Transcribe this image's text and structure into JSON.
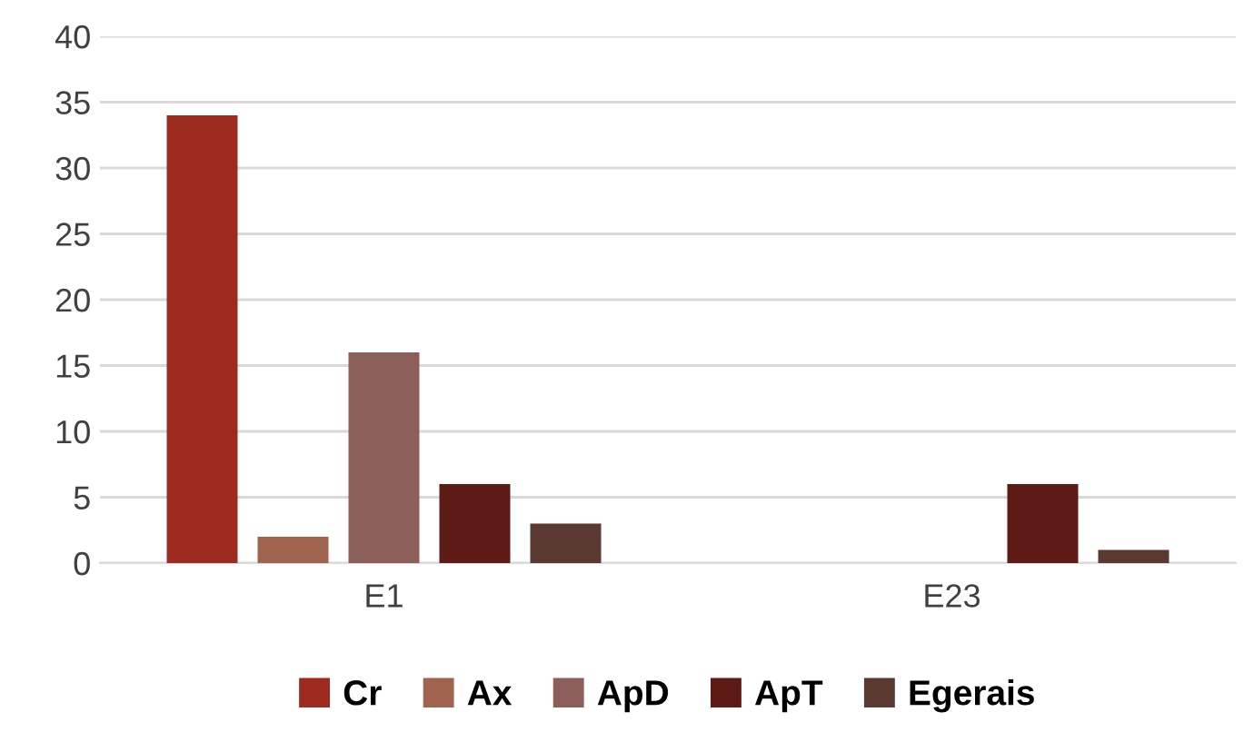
{
  "chart_data": {
    "type": "bar",
    "categories": [
      "E1",
      "E23"
    ],
    "series": [
      {
        "name": "Cr",
        "color": "#9e2b20",
        "values": [
          34,
          0
        ]
      },
      {
        "name": "Ax",
        "color": "#a0644e",
        "values": [
          2,
          0
        ]
      },
      {
        "name": "ApD",
        "color": "#8c5f5a",
        "values": [
          16,
          0
        ]
      },
      {
        "name": "ApT",
        "color": "#5e1a14",
        "values": [
          6,
          6
        ]
      },
      {
        "name": "Egerais",
        "color": "#5a3a30",
        "values": [
          3,
          1
        ]
      }
    ],
    "ylim": [
      0,
      40
    ],
    "yticks": [
      0,
      5,
      10,
      15,
      20,
      25,
      30,
      35,
      40
    ],
    "grid": "y",
    "legend": "bottom"
  }
}
